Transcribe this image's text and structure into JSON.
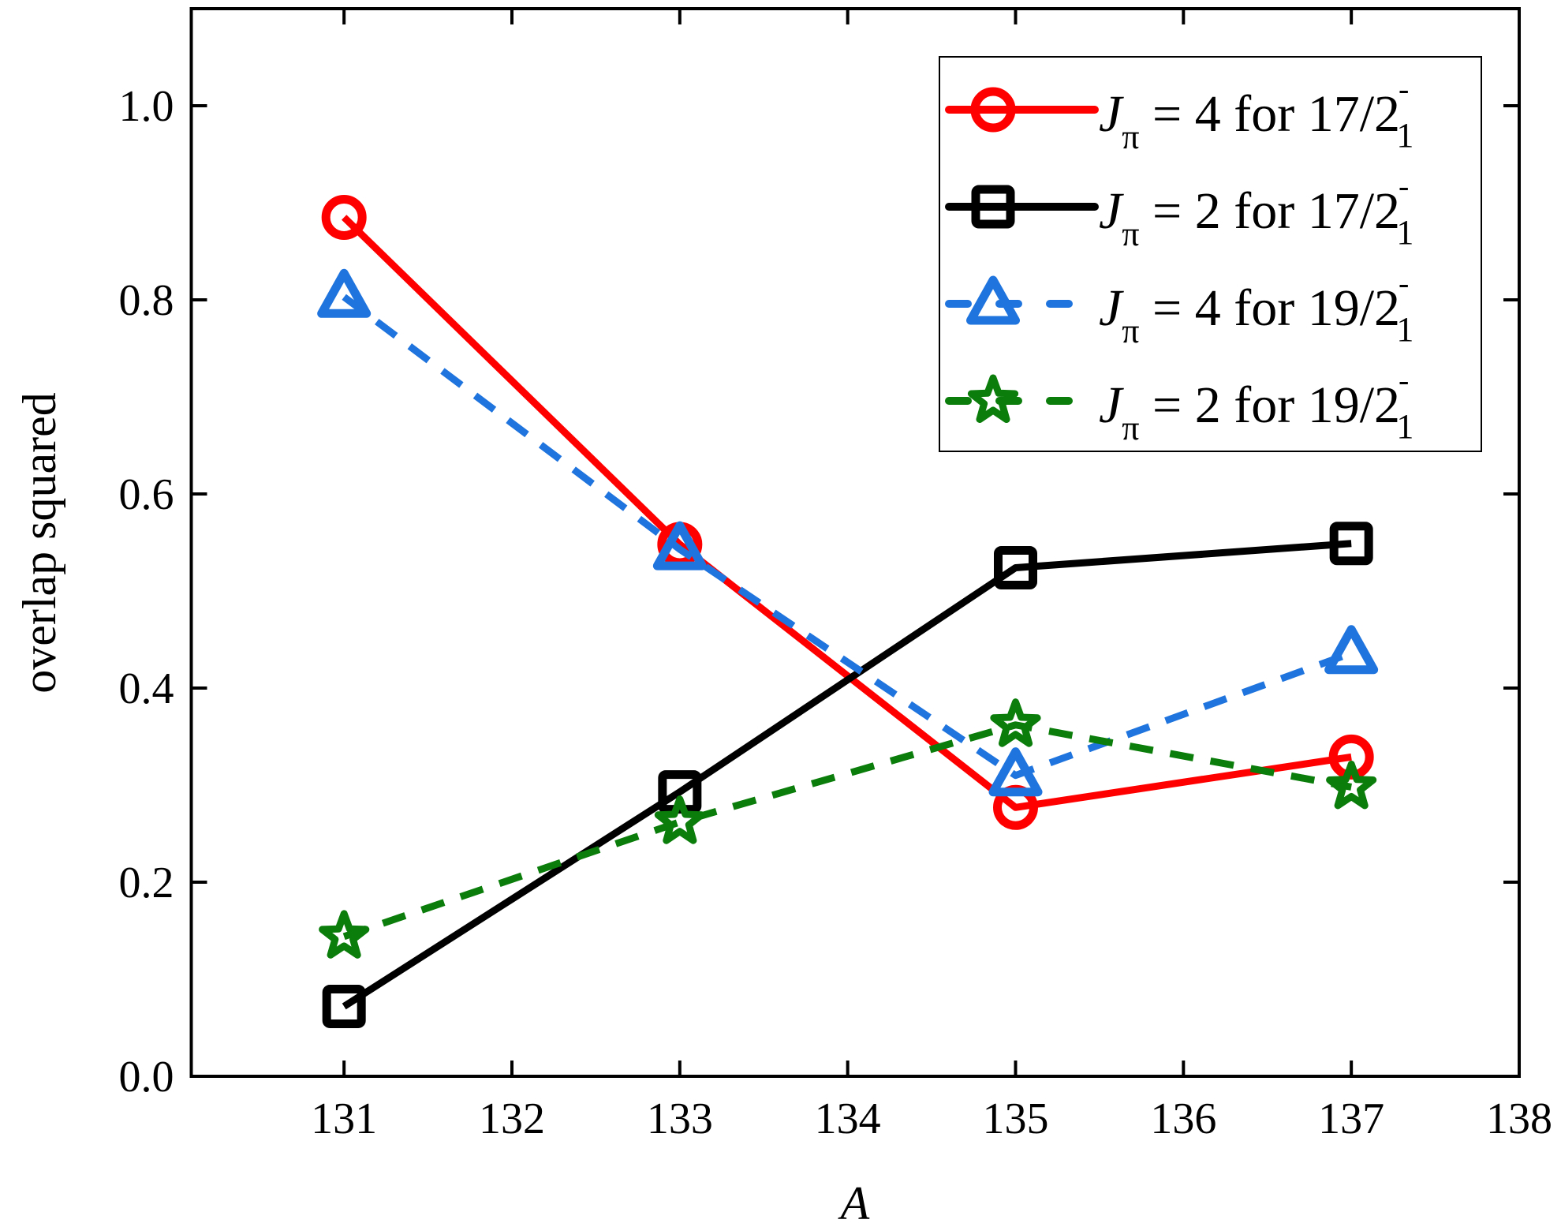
{
  "chart_data": {
    "type": "line",
    "xlabel": "A",
    "ylabel": "overlap squared",
    "xlim": [
      130.09,
      138
    ],
    "ylim": [
      0,
      1.1
    ],
    "xticks": [
      131,
      132,
      133,
      134,
      135,
      136,
      137,
      138
    ],
    "yticks": [
      0.0,
      0.2,
      0.4,
      0.6,
      0.8,
      1.0
    ],
    "xtick_labels": [
      "131",
      "132",
      "133",
      "134",
      "135",
      "136",
      "137",
      "138"
    ],
    "ytick_labels": [
      "0.0",
      "0.2",
      "0.4",
      "0.6",
      "0.8",
      "1.0"
    ],
    "grid": false,
    "legend_position": "top-right",
    "x": [
      131,
      133,
      135,
      137
    ],
    "series": [
      {
        "name": "J_π = 4 for 17/2⁻₁",
        "label": {
          "sym": "J",
          "sub": "π",
          "text": " = 4 for 17/2",
          "sup": "-",
          "sub2": "1"
        },
        "color": "#ff0000",
        "marker": "circle",
        "dash": false,
        "values": [
          0.885,
          0.548,
          0.277,
          0.329
        ]
      },
      {
        "name": "J_π = 2 for 17/2⁻₁",
        "label": {
          "sym": "J",
          "sub": "π",
          "text": " = 2 for 17/2",
          "sup": "-",
          "sub2": "1"
        },
        "color": "#000000",
        "marker": "square",
        "dash": false,
        "values": [
          0.072,
          0.293,
          0.524,
          0.549
        ]
      },
      {
        "name": "J_π = 4 for 19/2⁻₁",
        "label": {
          "sym": "J",
          "sub": "π",
          "text": " = 4 for 19/2",
          "sup": "-",
          "sub2": "1"
        },
        "color": "#1f74dd",
        "marker": "triangle",
        "dash": true,
        "values": [
          0.803,
          0.543,
          0.31,
          0.436
        ]
      },
      {
        "name": "J_π = 2 for 19/2⁻₁",
        "label": {
          "sym": "J",
          "sub": "π",
          "text": " = 2 for 19/2",
          "sup": "-",
          "sub2": "1"
        },
        "color": "#0a7d0a",
        "marker": "star",
        "dash": true,
        "values": [
          0.144,
          0.262,
          0.362,
          0.298
        ]
      }
    ]
  }
}
